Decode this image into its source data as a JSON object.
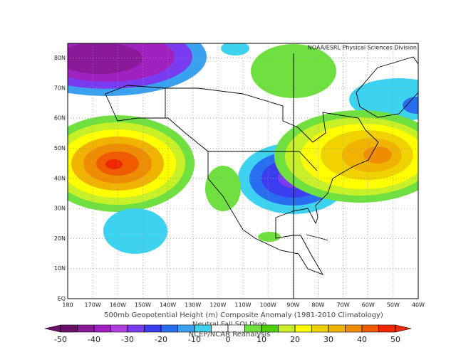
{
  "map": {
    "credit": "NOAA/ESRL Physical Sciences Division",
    "lon_labels": [
      "180",
      "170W",
      "160W",
      "150W",
      "140W",
      "130W",
      "120W",
      "110W",
      "100W",
      "90W",
      "80W",
      "70W",
      "60W",
      "50W",
      "40W"
    ],
    "lat_labels": [
      "EQ",
      "10N",
      "20N",
      "30N",
      "40N",
      "50N",
      "60N",
      "70N",
      "80N"
    ]
  },
  "caption": [
    "500mb Geopotential Height (m) Composite Anomaly (1981-2010 Climatology)",
    "Neutral Fall SOI Drop",
    "NCEP/NCAR Reanalysis"
  ],
  "colorbar": {
    "ticks": [
      -50,
      -40,
      -30,
      -20,
      -10,
      0,
      10,
      20,
      30,
      40,
      50
    ],
    "colors": [
      "#6a0f6a",
      "#8b1a9a",
      "#a020c0",
      "#b040e0",
      "#7a3cf0",
      "#3c3cf0",
      "#2a6ef0",
      "#3aa0f0",
      "#3cd2f0",
      "#ffffff",
      "#ffffff",
      "#70e040",
      "#50d010",
      "#c8f028",
      "#ffff00",
      "#f0d200",
      "#f0b400",
      "#f08c00",
      "#f05a00",
      "#f02800"
    ]
  }
}
